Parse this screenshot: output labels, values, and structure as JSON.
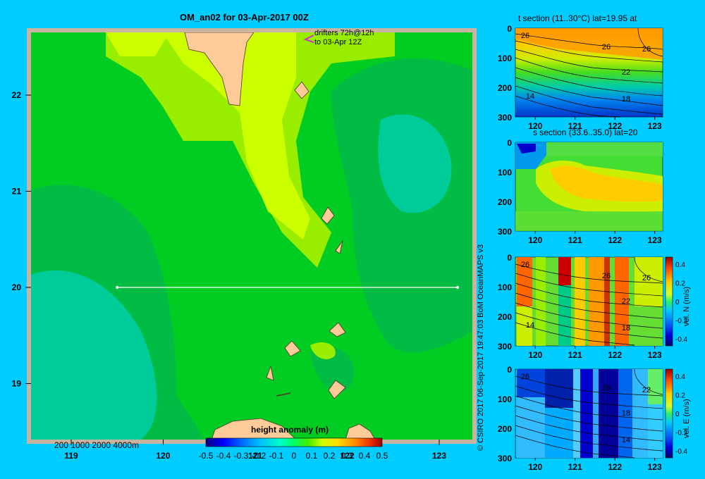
{
  "title": "OM_an02 for 03-Apr-2017 00Z",
  "drifters_label": [
    "drifters 72h@12h",
    "to 03-Apr 12Z"
  ],
  "depth_legend": "200  1000  2000  4000m",
  "credit": "© CSIRO 2017   06-Sep-2017 19:47:03 BoM OceanMAPS v3",
  "colors": {
    "background": "#00ccff",
    "land": "#ffcc99",
    "frame": "#c8b4a0",
    "drifter_marker": "#cc33cc",
    "section_line": "#ffffff"
  },
  "chart_data": [
    {
      "type": "heatmap",
      "title": "OM_an02 for 03-Apr-2017 00Z",
      "xlabel": "",
      "ylabel": "",
      "x_ticks": [
        "119",
        "120",
        "121",
        "122",
        "123"
      ],
      "y_ticks": [
        "22",
        "21",
        "20",
        "19"
      ],
      "xlim": [
        118.5,
        123.5
      ],
      "ylim": [
        18.3,
        22.7
      ],
      "section_line": {
        "lon": [
          119.5,
          123.2
        ],
        "lat": [
          20.0,
          20.0
        ]
      },
      "colorbar": {
        "label": "height anomaly  (m)",
        "ticks": [
          "-0.5",
          "-0.4",
          "-0.3",
          "-0.2",
          "-0.1",
          "0",
          "0.1",
          "0.2",
          "0.3",
          "0.4",
          "0.5"
        ],
        "range": [
          -0.5,
          0.5
        ]
      },
      "field_regions": [
        {
          "name": "background",
          "value": 0.16
        },
        {
          "name": "upper ridge",
          "value": 0.22
        },
        {
          "name": "east low",
          "value": 0.12
        },
        {
          "name": "east core",
          "value": 0.08
        },
        {
          "name": "west low",
          "value": 0.12
        },
        {
          "name": "west core",
          "value": 0.08
        },
        {
          "name": "south patch",
          "value": 0.12
        }
      ]
    },
    {
      "type": "heatmap",
      "title": "t section (11..30°C) lat=19.95 at",
      "xlabel": "",
      "ylabel": "",
      "x_ticks": [
        "120",
        "121",
        "122",
        "123"
      ],
      "y_ticks": [
        "0",
        "100",
        "200",
        "300"
      ],
      "xlim": [
        119.5,
        123.2
      ],
      "ylim": [
        300,
        0
      ],
      "contour_labels": [
        "26",
        "26",
        "26",
        "22",
        "18",
        "14"
      ]
    },
    {
      "type": "heatmap",
      "title": "s section (33.6..35.0) lat=20",
      "xlabel": "",
      "ylabel": "",
      "x_ticks": [
        "120",
        "121",
        "122",
        "123"
      ],
      "y_ticks": [
        "0",
        "100",
        "200",
        "300"
      ],
      "xlim": [
        119.5,
        123.2
      ],
      "ylim": [
        300,
        0
      ]
    },
    {
      "type": "heatmap",
      "title": "",
      "xlabel": "",
      "ylabel": "",
      "x_ticks": [
        "120",
        "121",
        "122",
        "123"
      ],
      "y_ticks": [
        "0",
        "100",
        "200",
        "300"
      ],
      "xlim": [
        119.5,
        123.2
      ],
      "ylim": [
        300,
        0
      ],
      "contour_labels": [
        "26",
        "26",
        "26",
        "22",
        "18",
        "14"
      ],
      "colorbar": {
        "label": "vel. N  (m/s)",
        "ticks": [
          "0.4",
          "0.2",
          "0",
          "-0.2",
          "-0.4"
        ],
        "range": [
          -0.4,
          0.4
        ]
      }
    },
    {
      "type": "heatmap",
      "title": "",
      "xlabel": "",
      "ylabel": "",
      "x_ticks": [
        "120",
        "121",
        "122",
        "123"
      ],
      "y_ticks": [
        "0",
        "100",
        "200",
        "300"
      ],
      "xlim": [
        119.5,
        123.2
      ],
      "ylim": [
        300,
        0
      ],
      "contour_labels": [
        "26",
        "26",
        "22",
        "18",
        "14"
      ],
      "colorbar": {
        "label": "vel. E  (m/s)",
        "ticks": [
          "0.4",
          "0.2",
          "0",
          "-0.2",
          "-0.4"
        ],
        "range": [
          -0.4,
          0.4
        ]
      }
    }
  ]
}
